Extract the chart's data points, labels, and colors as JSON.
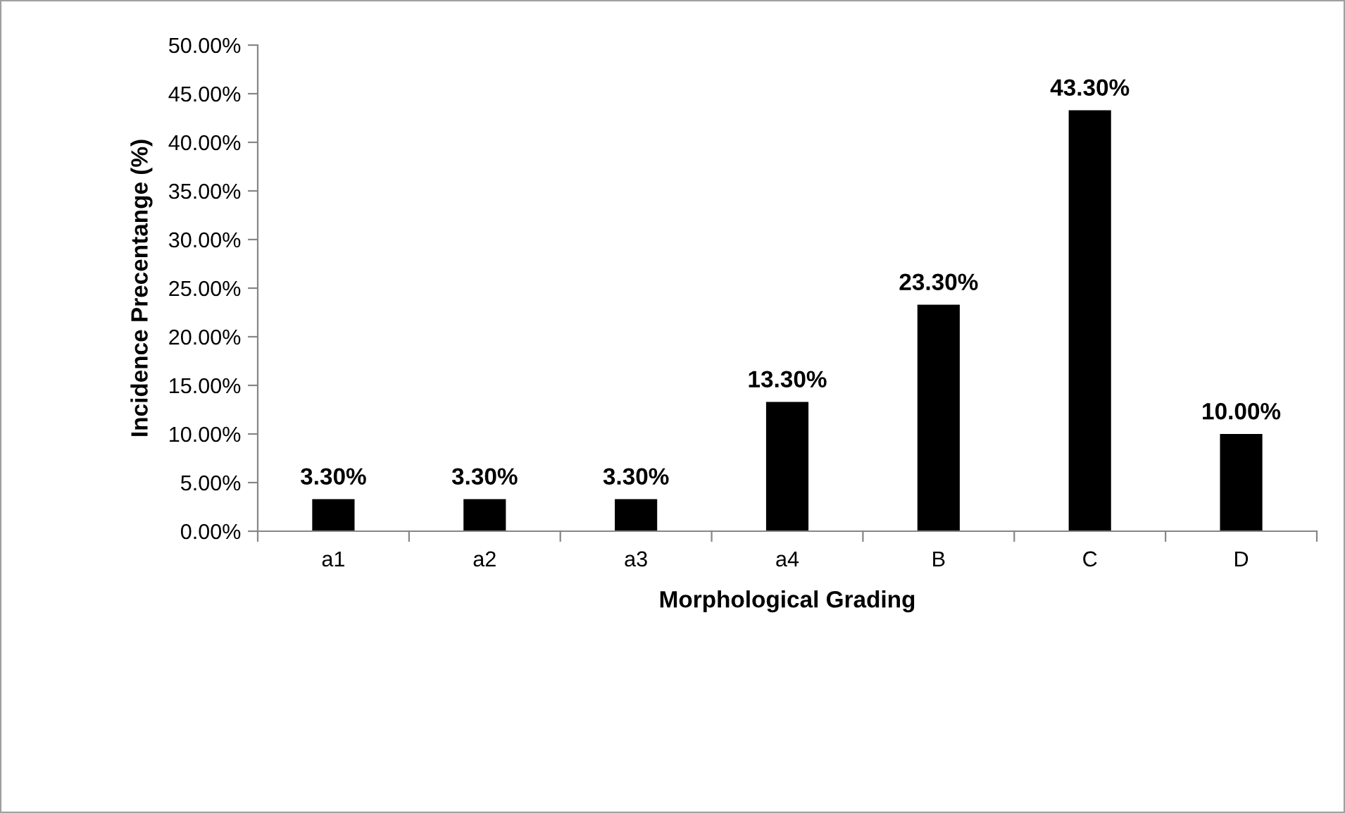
{
  "chart_data": {
    "type": "bar",
    "xlabel": "Morphological Grading",
    "ylabel": "Incidence Precentange (%)",
    "categories": [
      "a1",
      "a2",
      "a3",
      "a4",
      "B",
      "C",
      "D"
    ],
    "values": [
      3.3,
      3.3,
      3.3,
      13.3,
      23.3,
      43.3,
      10.0
    ],
    "value_labels": [
      "3.30%",
      "3.30%",
      "3.30%",
      "13.30%",
      "23.30%",
      "43.30%",
      "10.00%"
    ],
    "color": "#000000",
    "ylim": [
      0,
      50
    ],
    "yticks": [
      {
        "value": 0,
        "label": "0.00%"
      },
      {
        "value": 5,
        "label": "5.00%"
      },
      {
        "value": 10,
        "label": "10.00%"
      },
      {
        "value": 15,
        "label": "15.00%"
      },
      {
        "value": 20,
        "label": "20.00%"
      },
      {
        "value": 25,
        "label": "25.00%"
      },
      {
        "value": 30,
        "label": "30.00%"
      },
      {
        "value": 35,
        "label": "35.00%"
      },
      {
        "value": 40,
        "label": "40.00%"
      },
      {
        "value": 45,
        "label": "45.00%"
      },
      {
        "value": 50,
        "label": "50.00%"
      }
    ],
    "grid": false,
    "legend": false
  }
}
